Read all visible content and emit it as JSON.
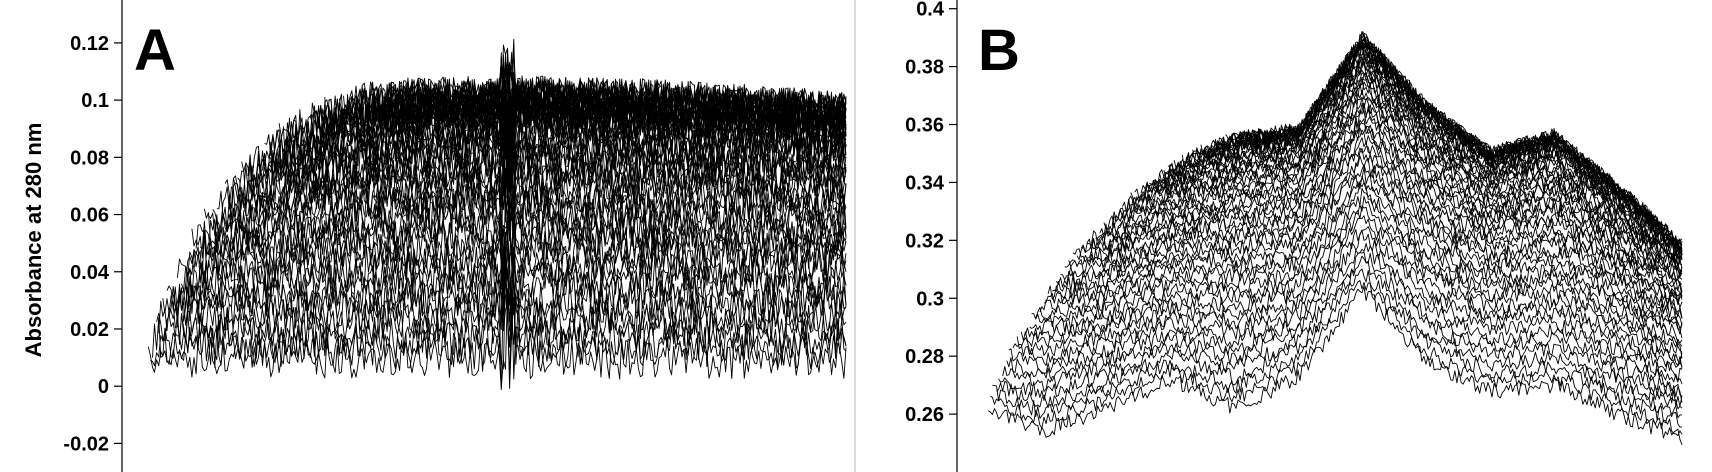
{
  "chart_data": [
    {
      "type": "line",
      "panel_label": "A",
      "title": "",
      "xlabel": "",
      "ylabel": "Absorbance at 280 nm",
      "ylim": [
        -0.03,
        0.135
      ],
      "yticks": [
        -0.02,
        0,
        0.02,
        0.04,
        0.06,
        0.08,
        0.1,
        0.12
      ],
      "ytick_labels": [
        "-0.02",
        "0",
        "0.02",
        "0.04",
        "0.06",
        "0.08",
        "0.1",
        "0.12"
      ],
      "grid": false,
      "legend": "none",
      "trace_count": 60,
      "baseline_absorbance": 0.01,
      "plateau_absorbance": 0.095,
      "color": "#000000"
    },
    {
      "type": "line",
      "panel_label": "B",
      "title": "",
      "xlabel": "",
      "ylabel": "",
      "ylim": [
        0.24,
        0.403
      ],
      "yticks": [
        0.26,
        0.28,
        0.3,
        0.32,
        0.34,
        0.36,
        0.38,
        0.4
      ],
      "ytick_labels": [
        "0.26",
        "0.28",
        "0.3",
        "0.32",
        "0.34",
        "0.36",
        "0.38",
        "0.4"
      ],
      "grid": false,
      "legend": "none",
      "trace_count": 60,
      "baseline_profile": [
        0.263,
        0.254,
        0.262,
        0.272,
        0.262,
        0.273,
        0.303,
        0.278,
        0.268,
        0.27,
        0.26,
        0.252
      ],
      "plateau_profile": [
        0.345,
        0.342,
        0.34,
        0.348,
        0.355,
        0.358,
        0.39,
        0.366,
        0.35,
        0.356,
        0.338,
        0.318
      ],
      "color": "#000000"
    }
  ]
}
